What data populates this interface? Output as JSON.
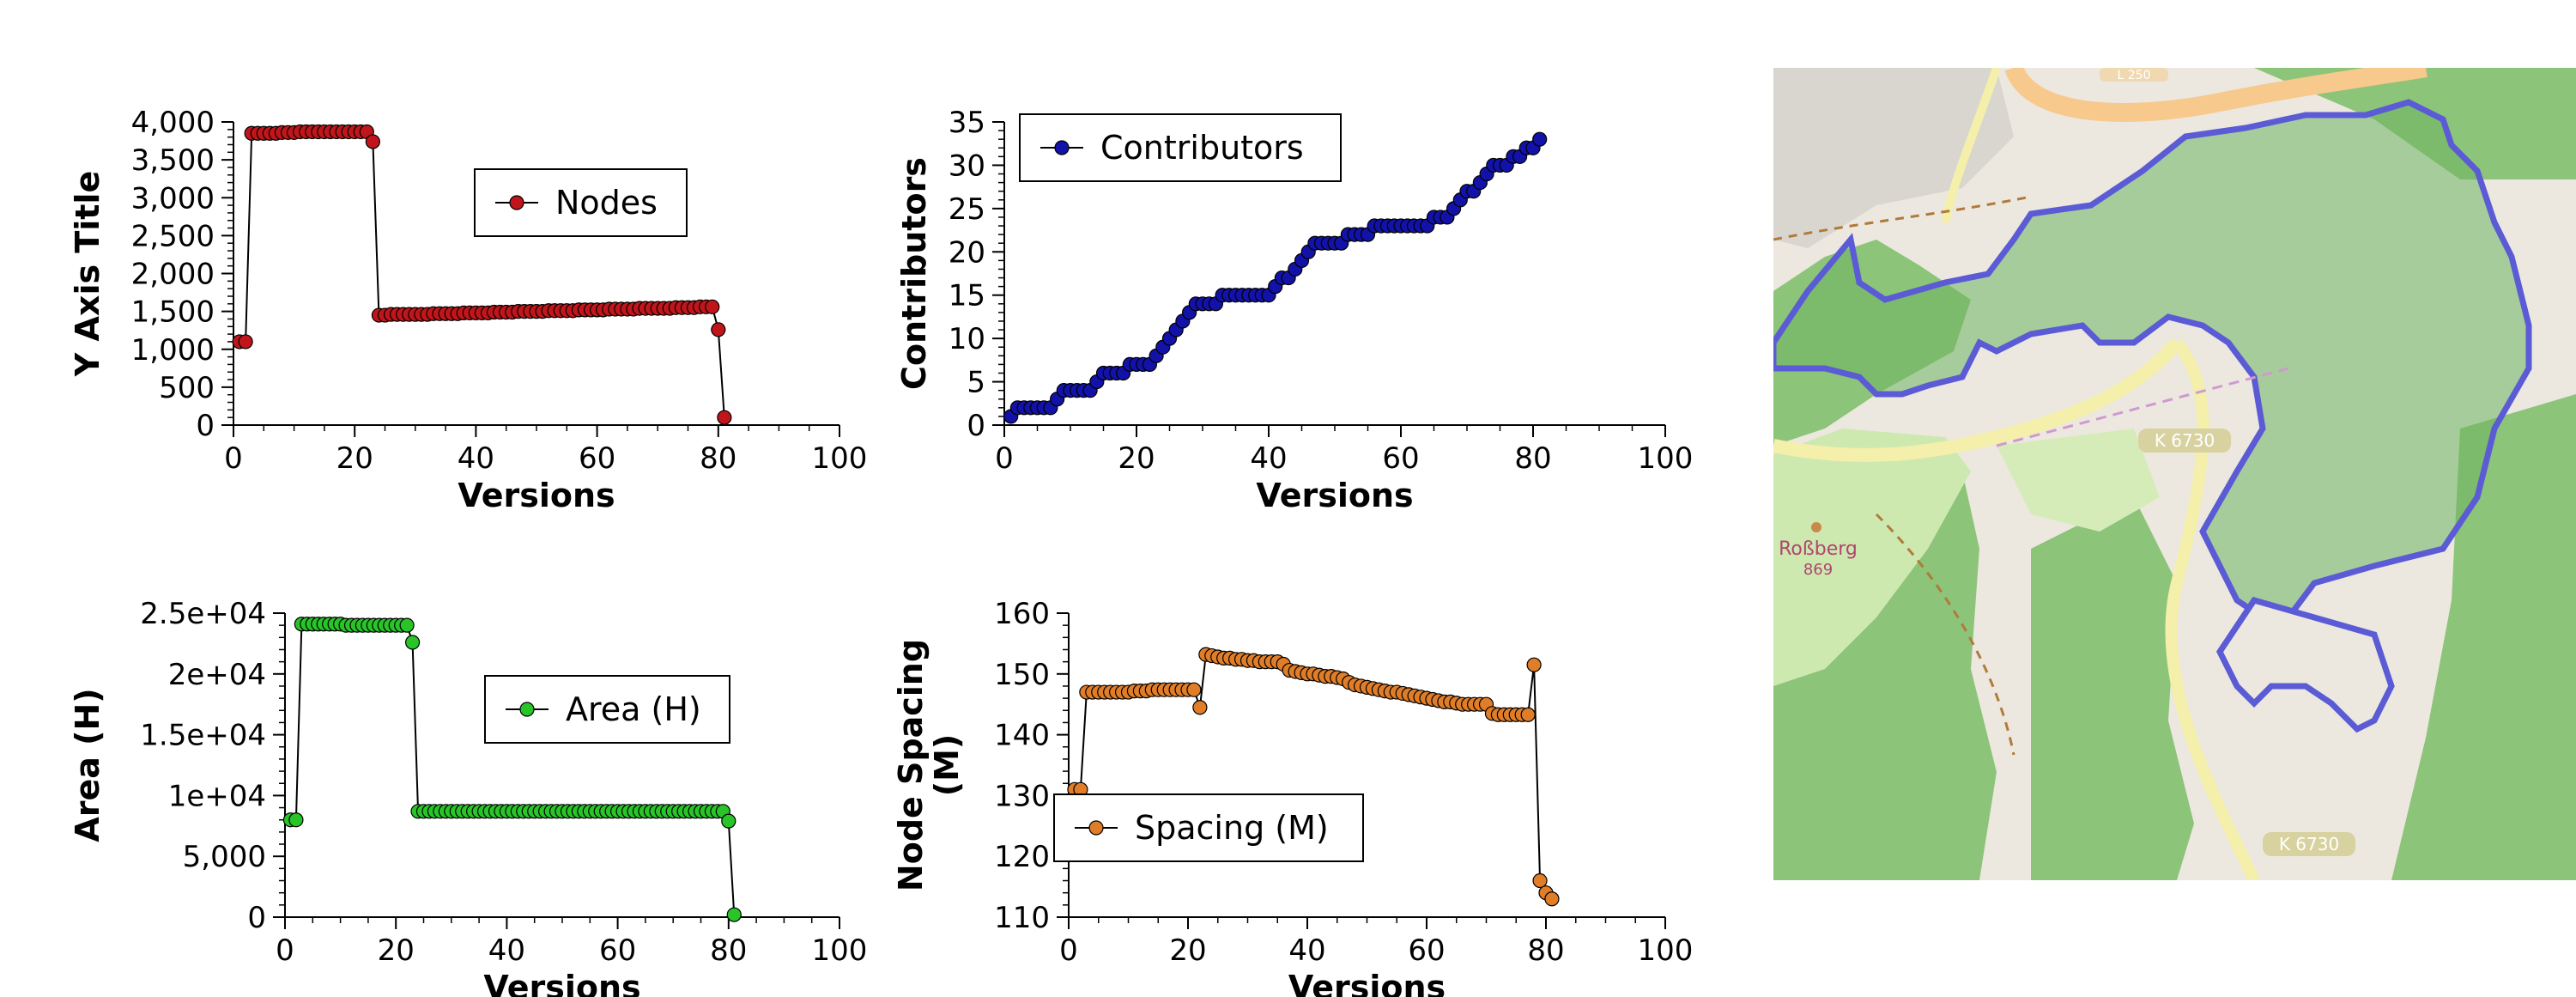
{
  "chart_data": [
    {
      "type": "line",
      "xlabel": "Versions",
      "ylabel": "Y Axis Title",
      "xlim": [
        0,
        100
      ],
      "ylim": [
        0,
        4000
      ],
      "xticks": [
        "0",
        "20",
        "40",
        "60",
        "80",
        "100"
      ],
      "yticks": [
        "0",
        "500",
        "1,000",
        "1,500",
        "2,000",
        "2,500",
        "3,000",
        "3,500",
        "4,000"
      ],
      "legend_placement": "right",
      "color": "#c0161b",
      "series": [
        {
          "name": "Nodes",
          "x": [
            1,
            2,
            3,
            4,
            5,
            6,
            7,
            8,
            9,
            10,
            11,
            12,
            13,
            14,
            15,
            16,
            17,
            18,
            19,
            20,
            21,
            22,
            23,
            24,
            25,
            26,
            27,
            28,
            29,
            30,
            31,
            32,
            33,
            34,
            35,
            36,
            37,
            38,
            39,
            40,
            41,
            42,
            43,
            44,
            45,
            46,
            47,
            48,
            49,
            50,
            51,
            52,
            53,
            54,
            55,
            56,
            57,
            58,
            59,
            60,
            61,
            62,
            63,
            64,
            65,
            66,
            67,
            68,
            69,
            70,
            71,
            72,
            73,
            74,
            75,
            76,
            77,
            78,
            79,
            80,
            81
          ],
          "values": [
            1100,
            1100,
            3850,
            3850,
            3850,
            3850,
            3850,
            3860,
            3860,
            3860,
            3870,
            3870,
            3870,
            3870,
            3870,
            3870,
            3870,
            3870,
            3870,
            3870,
            3870,
            3870,
            3740,
            1450,
            1450,
            1460,
            1460,
            1460,
            1460,
            1460,
            1460,
            1460,
            1470,
            1470,
            1470,
            1470,
            1470,
            1480,
            1480,
            1480,
            1480,
            1480,
            1490,
            1490,
            1490,
            1490,
            1500,
            1500,
            1500,
            1500,
            1500,
            1510,
            1510,
            1510,
            1510,
            1510,
            1520,
            1520,
            1520,
            1520,
            1520,
            1530,
            1530,
            1530,
            1530,
            1530,
            1540,
            1540,
            1540,
            1540,
            1540,
            1540,
            1550,
            1550,
            1550,
            1550,
            1560,
            1560,
            1560,
            1260,
            100
          ]
        }
      ]
    },
    {
      "type": "line",
      "xlabel": "Versions",
      "ylabel": "Contributors",
      "xlim": [
        0,
        100
      ],
      "ylim": [
        0,
        35
      ],
      "xticks": [
        "0",
        "20",
        "40",
        "60",
        "80",
        "100"
      ],
      "yticks": [
        "0",
        "5",
        "10",
        "15",
        "20",
        "25",
        "30",
        "35"
      ],
      "legend_placement": "top-left",
      "color": "#1212a8",
      "series": [
        {
          "name": "Contributors",
          "x": [
            1,
            2,
            3,
            4,
            5,
            6,
            7,
            8,
            9,
            10,
            11,
            12,
            13,
            14,
            15,
            16,
            17,
            18,
            19,
            20,
            21,
            22,
            23,
            24,
            25,
            26,
            27,
            28,
            29,
            30,
            31,
            32,
            33,
            34,
            35,
            36,
            37,
            38,
            39,
            40,
            41,
            42,
            43,
            44,
            45,
            46,
            47,
            48,
            49,
            50,
            51,
            52,
            53,
            54,
            55,
            56,
            57,
            58,
            59,
            60,
            61,
            62,
            63,
            64,
            65,
            66,
            67,
            68,
            69,
            70,
            71,
            72,
            73,
            74,
            75,
            76,
            77,
            78,
            79,
            80,
            81
          ],
          "values": [
            1,
            2,
            2,
            2,
            2,
            2,
            2,
            3,
            4,
            4,
            4,
            4,
            4,
            5,
            6,
            6,
            6,
            6,
            7,
            7,
            7,
            7,
            8,
            9,
            10,
            11,
            12,
            13,
            14,
            14,
            14,
            14,
            15,
            15,
            15,
            15,
            15,
            15,
            15,
            15,
            16,
            17,
            17,
            18,
            19,
            20,
            21,
            21,
            21,
            21,
            21,
            22,
            22,
            22,
            22,
            23,
            23,
            23,
            23,
            23,
            23,
            23,
            23,
            23,
            24,
            24,
            24,
            25,
            26,
            27,
            27,
            28,
            29,
            30,
            30,
            30,
            31,
            31,
            32,
            32,
            33
          ]
        }
      ]
    },
    {
      "type": "line",
      "xlabel": "Versions",
      "ylabel": "Area (H)",
      "xlim": [
        0,
        100
      ],
      "ylim": [
        0,
        25000
      ],
      "xticks": [
        "0",
        "20",
        "40",
        "60",
        "80",
        "100"
      ],
      "yticks": [
        "0",
        "5,000",
        "1e+04",
        "1.5e+04",
        "2e+04",
        "2.5e+04"
      ],
      "legend_placement": "right",
      "color": "#28c428",
      "series": [
        {
          "name": "Area (H)",
          "x": [
            1,
            2,
            3,
            4,
            5,
            6,
            7,
            8,
            9,
            10,
            11,
            12,
            13,
            14,
            15,
            16,
            17,
            18,
            19,
            20,
            21,
            22,
            23,
            24,
            25,
            26,
            27,
            28,
            29,
            30,
            31,
            32,
            33,
            34,
            35,
            36,
            37,
            38,
            39,
            40,
            41,
            42,
            43,
            44,
            45,
            46,
            47,
            48,
            49,
            50,
            51,
            52,
            53,
            54,
            55,
            56,
            57,
            58,
            59,
            60,
            61,
            62,
            63,
            64,
            65,
            66,
            67,
            68,
            69,
            70,
            71,
            72,
            73,
            74,
            75,
            76,
            77,
            78,
            79,
            80,
            81
          ],
          "values": [
            8000,
            8000,
            24100,
            24100,
            24100,
            24100,
            24100,
            24100,
            24100,
            24100,
            24000,
            24000,
            24000,
            24000,
            24000,
            24000,
            24000,
            24000,
            24000,
            24000,
            24000,
            24000,
            22600,
            8700,
            8700,
            8700,
            8700,
            8700,
            8700,
            8700,
            8700,
            8700,
            8700,
            8700,
            8700,
            8700,
            8700,
            8700,
            8700,
            8700,
            8700,
            8700,
            8700,
            8700,
            8700,
            8700,
            8700,
            8700,
            8700,
            8700,
            8700,
            8700,
            8700,
            8700,
            8700,
            8700,
            8700,
            8700,
            8700,
            8700,
            8700,
            8700,
            8700,
            8700,
            8700,
            8700,
            8700,
            8700,
            8700,
            8700,
            8700,
            8700,
            8700,
            8700,
            8700,
            8700,
            8700,
            8700,
            8700,
            7900,
            200
          ]
        }
      ]
    },
    {
      "type": "line",
      "xlabel": "Versions",
      "ylabel": "Node Spacing (M)",
      "xlim": [
        0,
        100
      ],
      "ylim": [
        110,
        160
      ],
      "xticks": [
        "0",
        "20",
        "40",
        "60",
        "80",
        "100"
      ],
      "yticks": [
        "110",
        "120",
        "130",
        "140",
        "150",
        "160"
      ],
      "legend_placement": "bottom-left",
      "color": "#e07d28",
      "series": [
        {
          "name": "Spacing (M)",
          "x": [
            1,
            2,
            3,
            4,
            5,
            6,
            7,
            8,
            9,
            10,
            11,
            12,
            13,
            14,
            15,
            16,
            17,
            18,
            19,
            20,
            21,
            22,
            23,
            24,
            25,
            26,
            27,
            28,
            29,
            30,
            31,
            32,
            33,
            34,
            35,
            36,
            37,
            38,
            39,
            40,
            41,
            42,
            43,
            44,
            45,
            46,
            47,
            48,
            49,
            50,
            51,
            52,
            53,
            54,
            55,
            56,
            57,
            58,
            59,
            60,
            61,
            62,
            63,
            64,
            65,
            66,
            67,
            68,
            69,
            70,
            71,
            72,
            73,
            74,
            75,
            76,
            77,
            78,
            79,
            80,
            81
          ],
          "values": [
            131,
            131,
            147,
            147,
            147,
            147,
            147,
            147,
            147,
            147,
            147.2,
            147.2,
            147.2,
            147.4,
            147.4,
            147.4,
            147.4,
            147.4,
            147.4,
            147.4,
            147.4,
            144.5,
            153.2,
            153,
            152.8,
            152.6,
            152.6,
            152.4,
            152.4,
            152.2,
            152.2,
            152,
            152,
            152,
            152,
            151.6,
            150.6,
            150.4,
            150.2,
            150,
            150,
            149.8,
            149.6,
            149.6,
            149.4,
            149.2,
            148.6,
            148.2,
            148,
            147.8,
            147.6,
            147.4,
            147.2,
            147,
            147,
            146.8,
            146.6,
            146.4,
            146.2,
            146,
            145.8,
            145.6,
            145.4,
            145.4,
            145.2,
            145,
            145,
            145,
            145,
            145,
            143.5,
            143.3,
            143.3,
            143.3,
            143.3,
            143.3,
            143.3,
            151.5,
            116,
            114,
            113
          ]
        }
      ]
    }
  ],
  "map": {
    "labels": {
      "road_top": "L 250",
      "road_mid": "K 6730",
      "road_bottom": "K 6730",
      "peak_name": "Roßberg",
      "peak_elevation": "869"
    },
    "colors": {
      "forest": "#8cc479",
      "forest_dark": "#7cba6a",
      "boundary": "#5b5bd6",
      "background": "#ece8df",
      "road_major": "#f7c98d",
      "road_minor": "#f4efaa"
    }
  }
}
